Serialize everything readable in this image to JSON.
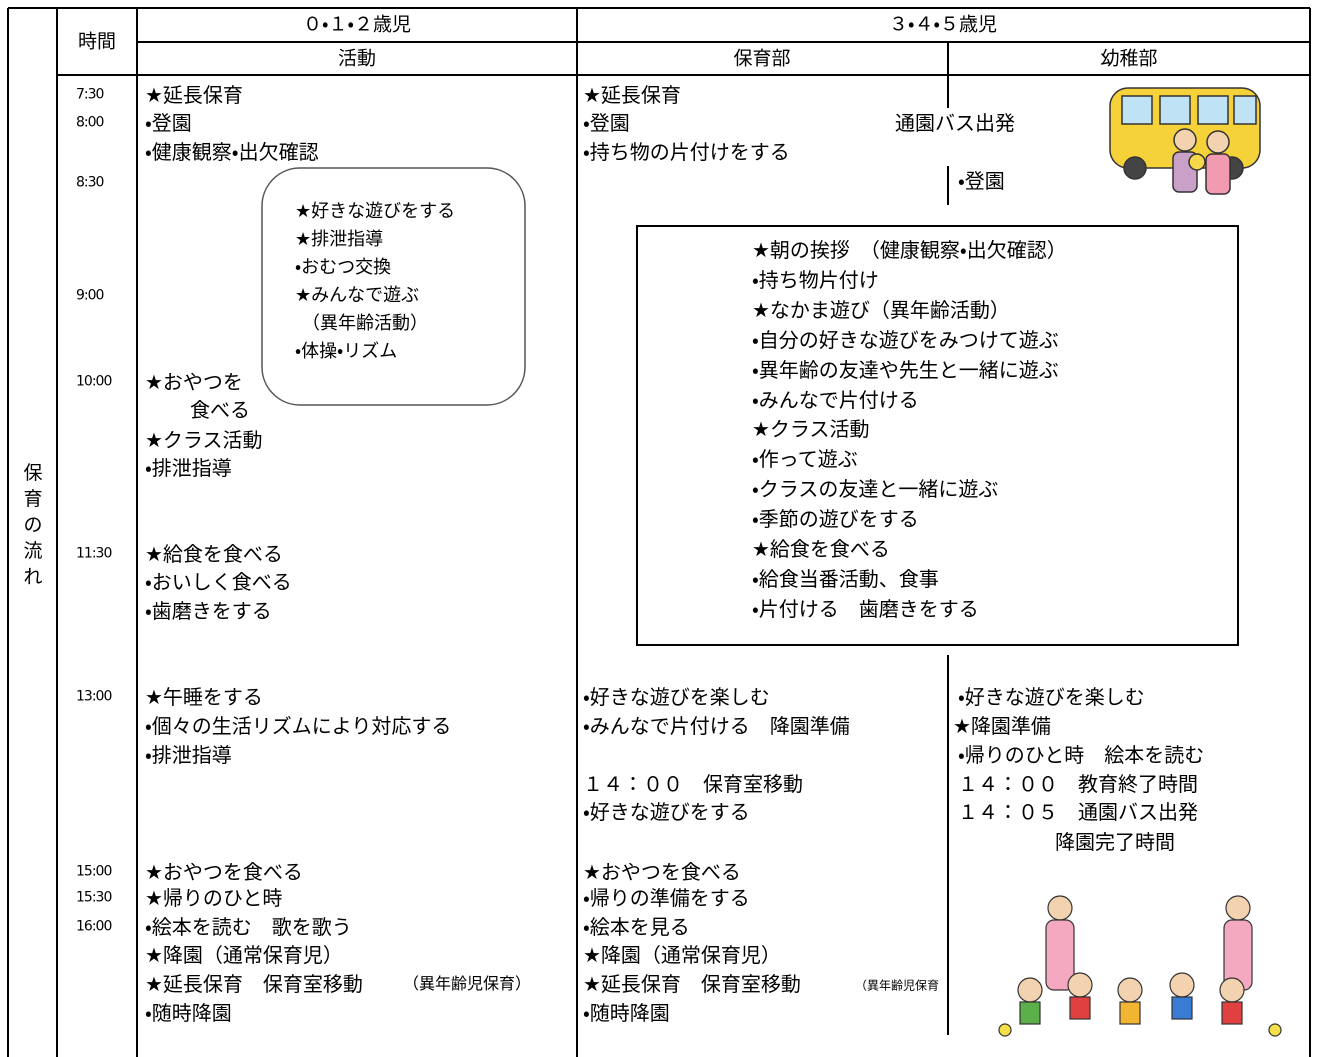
{
  "side_label": "保育の流れ",
  "header": {
    "time": "時間",
    "group_young": "０・１・２歳児",
    "group_old": "３・４・５歳児",
    "activity": "活動",
    "hoikubu": "保育部",
    "youchibu": "幼稚部"
  },
  "times": [
    "7:30",
    "8:00",
    "8:30",
    "9:00",
    "10:00",
    "11:30",
    "13:00",
    "15:00",
    "15:30",
    "16:00"
  ],
  "infant": {
    "lines": [
      "★延長保育",
      "・登園",
      "・健康観察・出欠確認",
      "★おやつを",
      "食べる",
      "★クラス活動",
      "・排泄指導",
      "★給食を食べる",
      "・おいしく食べる",
      "・歯磨きをする",
      "★午睡をする",
      "・個々の生活リズムにより対応する",
      "・排泄指導",
      "★おやつを食べる",
      "★帰りのひと時",
      "・絵本を読む　歌を歌う",
      "★降園（通常保育児）",
      "★延長保育　保育室移動",
      "・随時降園"
    ],
    "note": "（異年齢児保育）",
    "bubble": [
      "★好きな遊びをする",
      "★排泄指導",
      "・おむつ交換",
      "★みんなで遊ぶ",
      "（異年齢活動）",
      "・体操・リズム"
    ]
  },
  "hoikubu": {
    "lines": [
      "★延長保育",
      "・登園",
      "通園バス出発",
      "・持ち物の片付けをする",
      "・好きな遊びを楽しむ",
      "・みんなで片付ける　降園準備",
      "１４：００　保育室移動",
      "・好きな遊びをする",
      "★おやつを食べる",
      "・帰りの準備をする",
      "・絵本を見る",
      "★降園（通常保育児）",
      "★延長保育　保育室移動",
      "・随時降園"
    ],
    "note": "（異年齢児保育"
  },
  "youchibu": {
    "lines": [
      "・登園",
      "・好きな遊びを楽しむ",
      "★降園準備",
      "・帰りのひと時　絵本を読む",
      "１４：００　教育終了時間",
      "１４：０５　通園バス出発",
      "降園完了時間"
    ]
  },
  "shared_box": [
    "★朝の挨拶　（健康観察・出欠確認）",
    "・持ち物片付け",
    "★なかま遊び（異年齢活動）",
    "・自分の好きな遊びをみつけて遊ぶ",
    "・異年齢の友達や先生と一緒に遊ぶ",
    "・みんなで片付ける",
    "★クラス活動",
    "・作って遊ぶ",
    "・クラスの友達と一緒に遊ぶ",
    "・季節の遊びをする",
    "★給食を食べる",
    "・給食当番活動、食事",
    "・片付ける　歯磨きをする"
  ]
}
